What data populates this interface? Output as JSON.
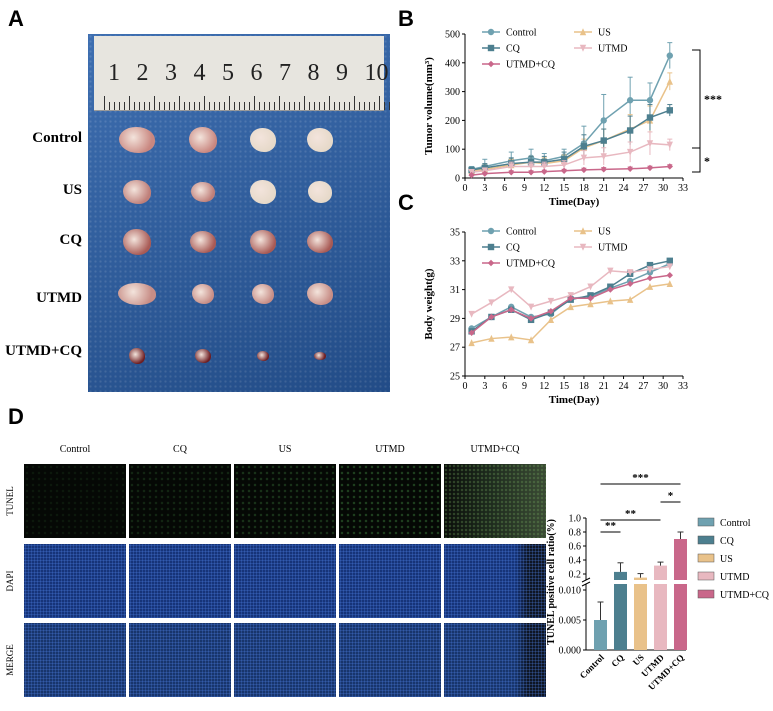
{
  "panels": {
    "a": "A",
    "b": "B",
    "c": "C",
    "d": "D"
  },
  "ruler_numbers": [
    "1",
    "2",
    "3",
    "4",
    "5",
    "6",
    "7",
    "8",
    "9",
    "10"
  ],
  "photo_groups": [
    "Control",
    "US",
    "CQ",
    "UTMD",
    "UTMD+CQ"
  ],
  "micro": {
    "columns": [
      "Control",
      "CQ",
      "US",
      "UTMD",
      "UTMD+CQ"
    ],
    "rows": [
      "TUNEL",
      "DAPI",
      "MERGE"
    ]
  },
  "colors": {
    "Control": "#6fa1b0",
    "US": "#e9c28a",
    "CQ": "#4d7f8f",
    "UTMD": "#e8b8c0",
    "UTMD+CQ": "#c9678a"
  },
  "chart_data": [
    {
      "type": "line",
      "panel": "B",
      "xlabel": "Time(Day)",
      "ylabel": "Tumor volume(mm³)",
      "xlim": [
        0,
        33
      ],
      "ylim": [
        0,
        500
      ],
      "xticks": [
        0,
        3,
        6,
        9,
        12,
        15,
        18,
        21,
        24,
        27,
        30,
        33
      ],
      "yticks": [
        0,
        100,
        200,
        300,
        400,
        500
      ],
      "legend": [
        "Control",
        "US",
        "CQ",
        "UTMD",
        "UTMD+CQ"
      ],
      "x": [
        1,
        3,
        7,
        10,
        12,
        15,
        18,
        21,
        25,
        28,
        31
      ],
      "series": [
        {
          "name": "Control",
          "values": [
            30,
            40,
            60,
            70,
            60,
            75,
            120,
            200,
            270,
            270,
            425
          ],
          "err": [
            10,
            25,
            30,
            30,
            25,
            25,
            60,
            90,
            80,
            60,
            45
          ]
        },
        {
          "name": "US",
          "values": [
            25,
            30,
            45,
            55,
            50,
            60,
            105,
            130,
            170,
            200,
            335
          ],
          "err": [
            8,
            15,
            20,
            20,
            20,
            20,
            30,
            40,
            50,
            50,
            30
          ]
        },
        {
          "name": "CQ",
          "values": [
            28,
            35,
            50,
            55,
            55,
            65,
            110,
            130,
            165,
            210,
            235
          ],
          "err": [
            8,
            15,
            20,
            20,
            20,
            25,
            40,
            40,
            50,
            45,
            20
          ]
        },
        {
          "name": "UTMD",
          "values": [
            20,
            25,
            40,
            40,
            40,
            45,
            70,
            75,
            90,
            120,
            115
          ],
          "err": [
            6,
            10,
            15,
            15,
            15,
            15,
            25,
            30,
            35,
            40,
            20
          ]
        },
        {
          "name": "UTMD+CQ",
          "values": [
            10,
            15,
            20,
            20,
            22,
            25,
            28,
            30,
            32,
            35,
            40
          ],
          "err": [
            3,
            4,
            5,
            5,
            5,
            5,
            6,
            6,
            6,
            6,
            6
          ]
        }
      ],
      "annotations": [
        "***",
        "*"
      ]
    },
    {
      "type": "line",
      "panel": "C",
      "xlabel": "Time(Day)",
      "ylabel": "Body weight(g)",
      "xlim": [
        0,
        33
      ],
      "ylim": [
        25,
        35
      ],
      "xticks": [
        0,
        3,
        6,
        9,
        12,
        15,
        18,
        21,
        24,
        27,
        30,
        33
      ],
      "yticks": [
        25,
        27,
        29,
        31,
        33,
        35
      ],
      "legend": [
        "Control",
        "US",
        "CQ",
        "UTMD",
        "UTMD+CQ"
      ],
      "x": [
        1,
        4,
        7,
        10,
        13,
        16,
        19,
        22,
        25,
        28,
        31
      ],
      "series": [
        {
          "name": "Control",
          "values": [
            28.3,
            29.1,
            29.8,
            29.1,
            29.3,
            30.4,
            30.5,
            31.1,
            31.6,
            32.2,
            32.8
          ]
        },
        {
          "name": "US",
          "values": [
            27.3,
            27.6,
            27.7,
            27.5,
            28.9,
            29.8,
            30.0,
            30.2,
            30.3,
            31.2,
            31.4
          ]
        },
        {
          "name": "CQ",
          "values": [
            28.1,
            29.1,
            29.6,
            28.9,
            29.4,
            30.3,
            30.6,
            31.2,
            32.1,
            32.7,
            33.0
          ]
        },
        {
          "name": "UTMD",
          "values": [
            29.3,
            30.1,
            31.0,
            29.8,
            30.2,
            30.6,
            31.2,
            32.3,
            32.2,
            32.4,
            32.6
          ]
        },
        {
          "name": "UTMD+CQ",
          "values": [
            28.0,
            29.1,
            29.6,
            29.0,
            29.5,
            30.4,
            30.4,
            31.0,
            31.4,
            31.8,
            32.0
          ]
        }
      ]
    },
    {
      "type": "bar",
      "panel": "D",
      "ylabel": "TUNEL positive cell ratio(%)",
      "categories": [
        "Control",
        "CQ",
        "US",
        "UTMD",
        "UTMD+CQ"
      ],
      "values": [
        0.005,
        0.23,
        0.08,
        0.32,
        0.7
      ],
      "err": [
        0.003,
        0.13,
        0.02,
        0.05,
        0.1
      ],
      "yticks_upper": [
        "0.2",
        "0.4",
        "0.6",
        "0.8",
        "1.0"
      ],
      "yticks_lower": [
        "0.000",
        "0.005",
        "0.010"
      ],
      "legend": [
        "Control",
        "CQ",
        "US",
        "UTMD",
        "UTMD+CQ"
      ],
      "significance": [
        "**",
        "**",
        "***",
        "*"
      ]
    }
  ]
}
